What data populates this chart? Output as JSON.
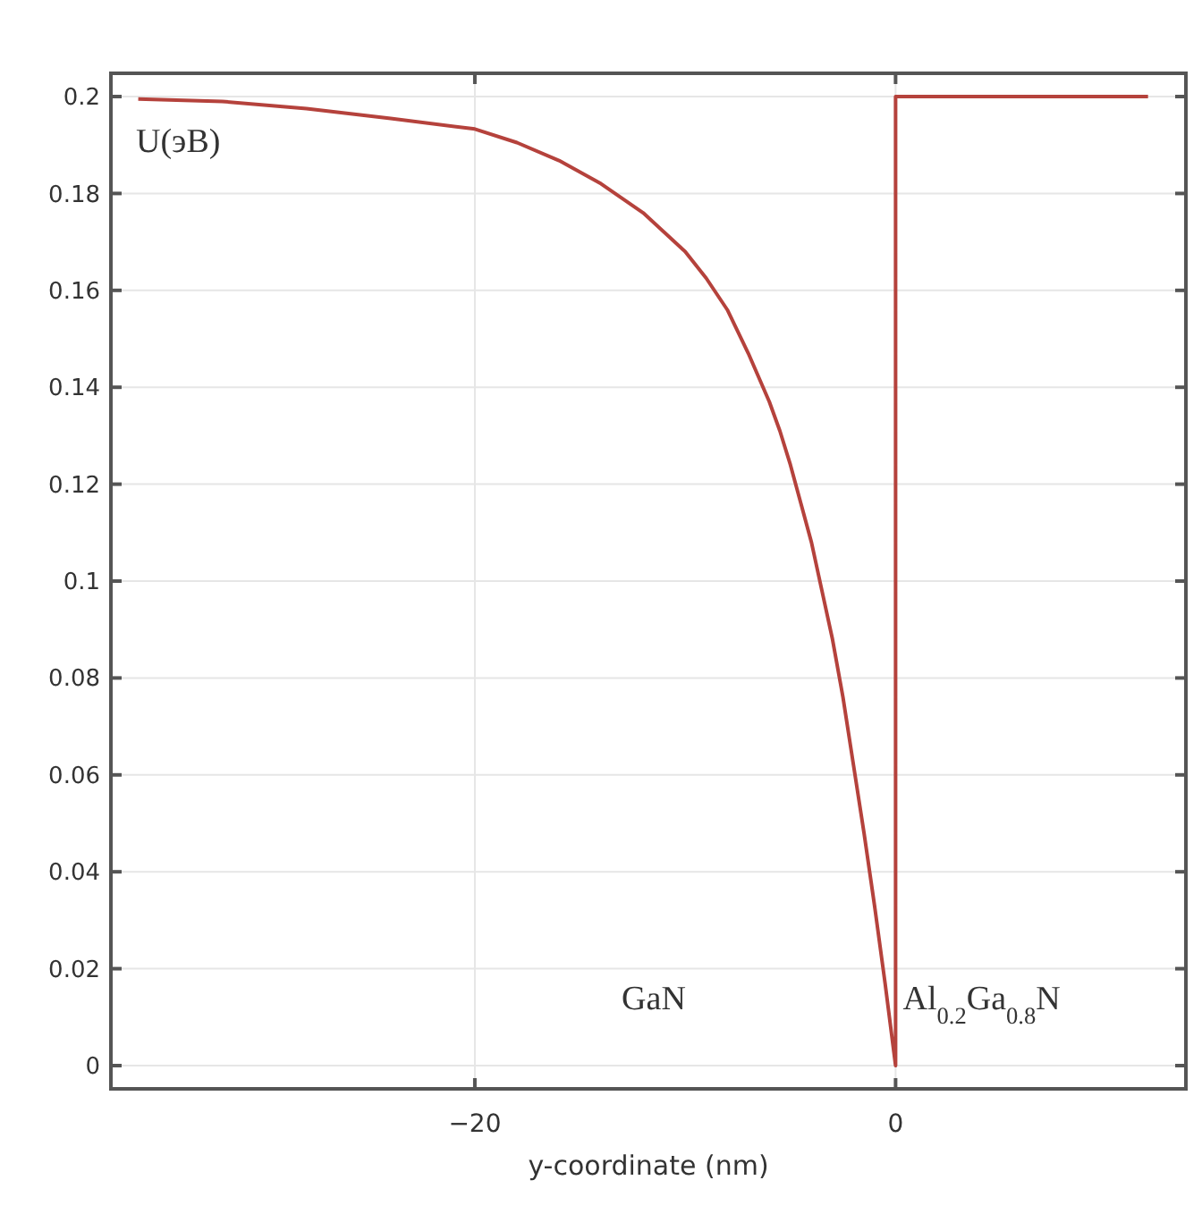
{
  "chart_data": {
    "type": "line",
    "xlabel": "y-coordinate (nm)",
    "ylabel": "U(эВ)",
    "x": [
      -36,
      -32,
      -28,
      -24,
      -20,
      -18,
      -16,
      -14,
      -13,
      -12,
      -11,
      -10,
      -9,
      -8,
      -7,
      -6,
      -5.5,
      -5,
      -4.5,
      -4,
      -3.5,
      -3,
      -2.5,
      -2,
      -1.5,
      -1,
      -0.5,
      0,
      0,
      12
    ],
    "series": [
      {
        "color": "#b5423c",
        "values": [
          0.1995,
          0.199,
          0.1975,
          0.1955,
          0.1933,
          0.1905,
          0.1868,
          0.182,
          0.179,
          0.176,
          0.172,
          0.168,
          0.1625,
          0.156,
          0.147,
          0.137,
          0.131,
          0.124,
          0.116,
          0.108,
          0.098,
          0.088,
          0.076,
          0.062,
          0.048,
          0.033,
          0.017,
          0,
          0.2,
          0.2
        ]
      }
    ],
    "xlim": [
      -37.3,
      13.8
    ],
    "ylim": [
      -0.0048,
      0.2048
    ],
    "xticks": [
      {
        "value": -20,
        "label": "−20"
      },
      0
    ],
    "yticks": [
      0,
      0.02,
      0.04,
      0.06,
      0.08,
      0.1,
      0.12,
      0.14,
      0.16,
      0.18,
      0.2
    ],
    "grid": true,
    "marker": "none",
    "line_style": "solid",
    "annotations": [
      "GaN",
      "Al$_{0.2}$Ga$_{0.8}$N"
    ]
  }
}
